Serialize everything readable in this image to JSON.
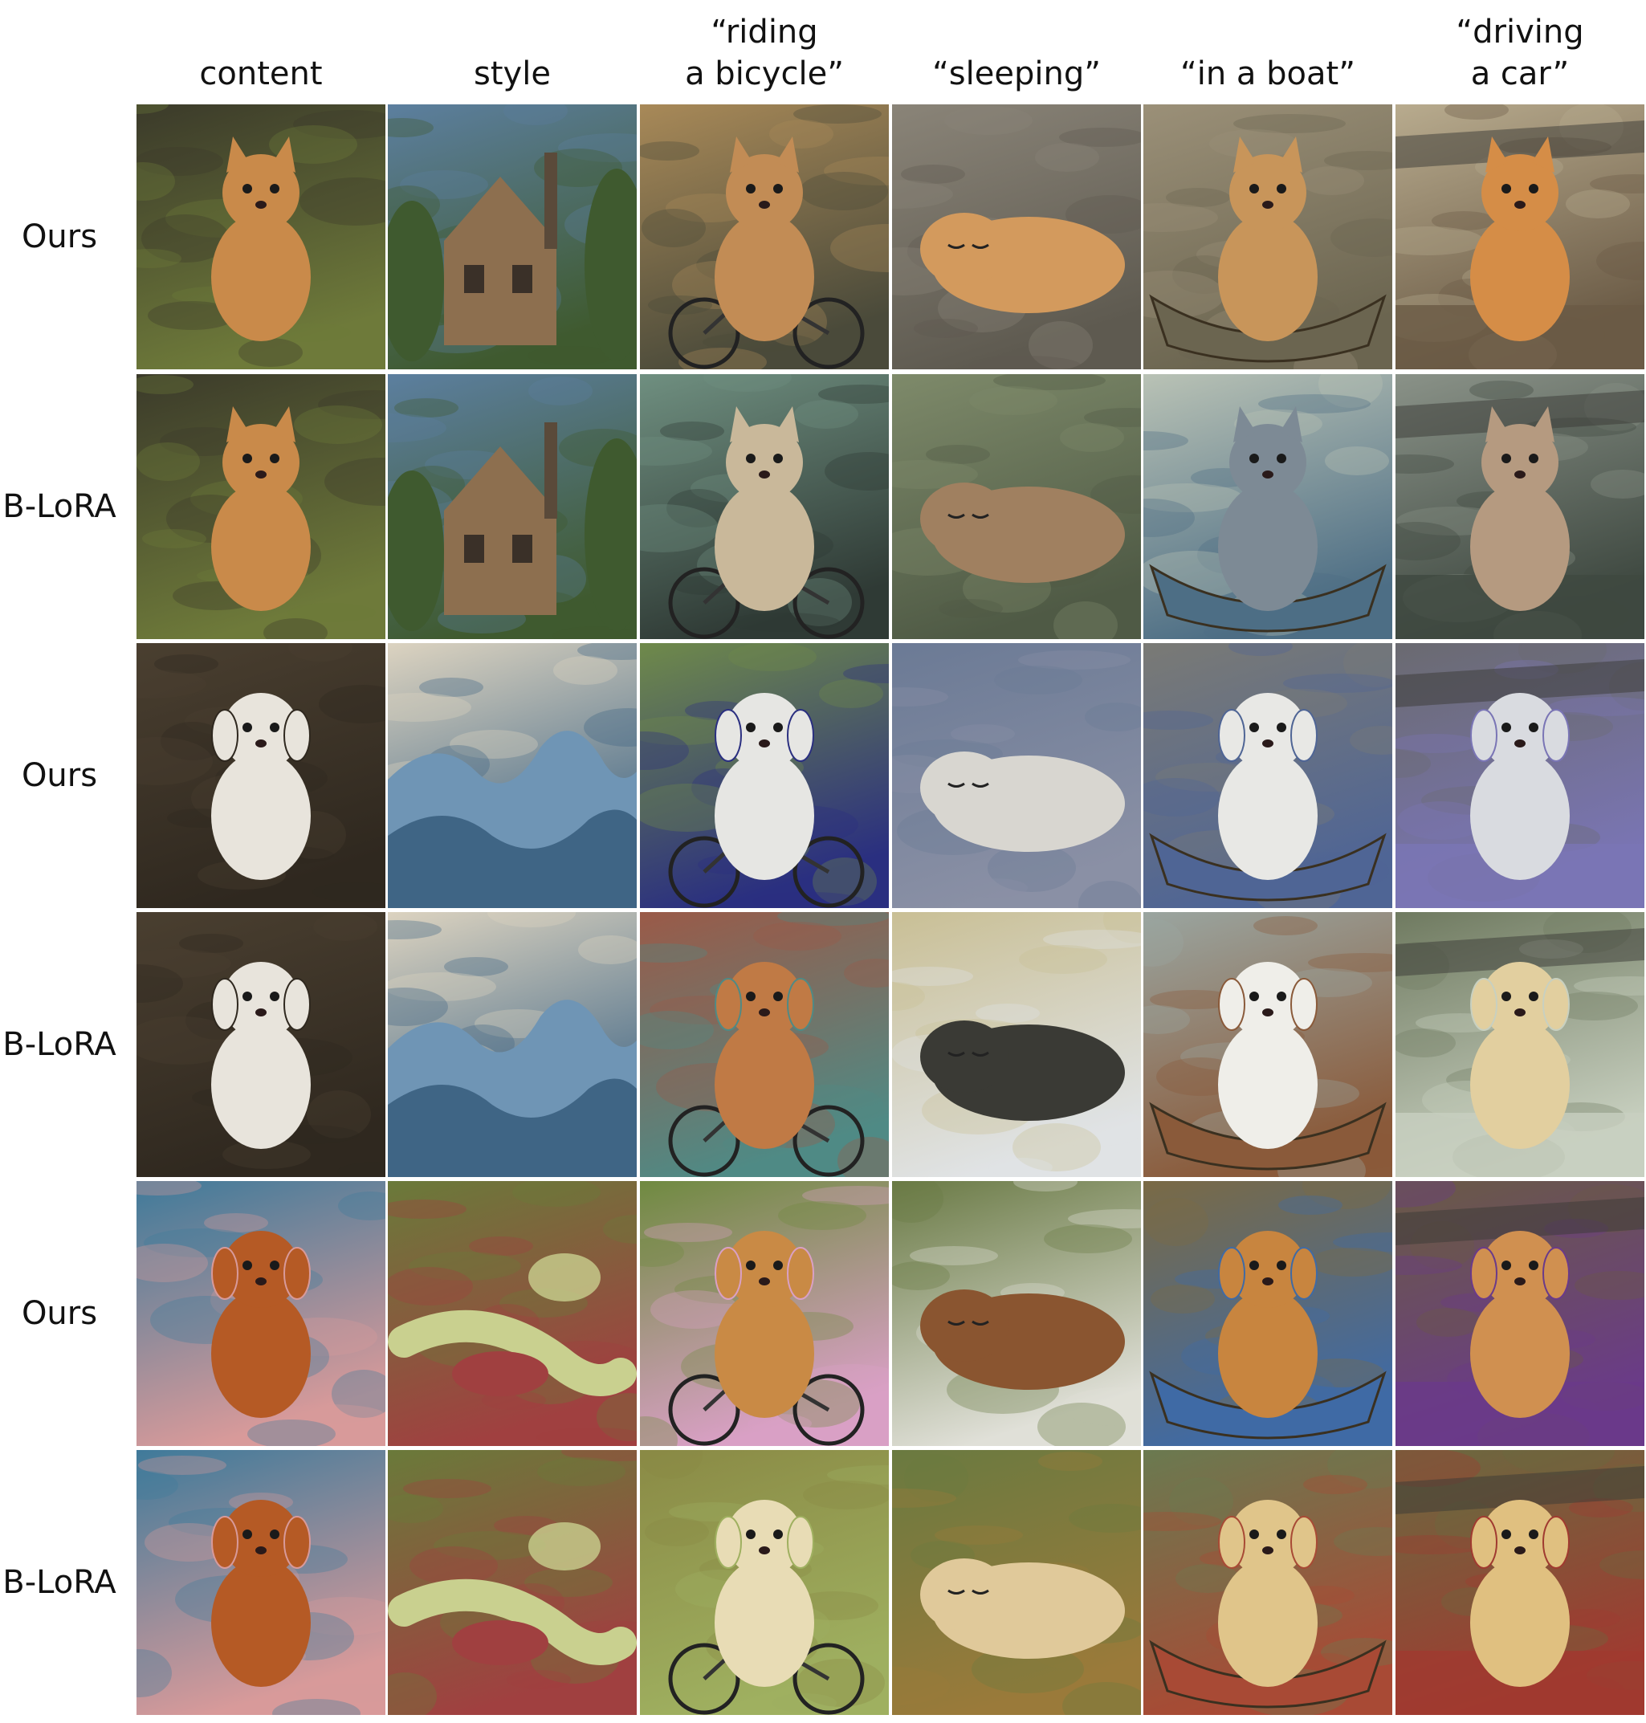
{
  "columns": [
    {
      "key": "content",
      "label": "content"
    },
    {
      "key": "style",
      "label": "style"
    },
    {
      "key": "riding",
      "label": "“riding\na bicycle”"
    },
    {
      "key": "sleeping",
      "label": "“sleeping”"
    },
    {
      "key": "boat",
      "label": "“in a boat”"
    },
    {
      "key": "driving",
      "label": "“driving\na car”"
    }
  ],
  "rows": [
    {
      "method": "Ours",
      "tiles": [
        {
          "subject": "cat",
          "scene": "sitting on grass, photo",
          "bg": "#3b3a2a",
          "fg": "#c98a4a",
          "accent": "#6e7a3a",
          "icon": "cat-photo-icon"
        },
        {
          "subject": "house",
          "scene": "watercolor painting of a gothic house",
          "bg": "#5c7f9f",
          "fg": "#8d6f4f",
          "accent": "#3f5a2f",
          "icon": "watercolor-house-icon"
        },
        {
          "subject": "cat",
          "scene": "cat in jacket riding bicycle",
          "bg": "#a88958",
          "fg": "#c28c55",
          "accent": "#4a4a3a",
          "icon": "cat-bicycle-icon"
        },
        {
          "subject": "cat",
          "scene": "cat sleeping on sheets",
          "bg": "#8a8478",
          "fg": "#d39a5d",
          "accent": "#5e5a50",
          "icon": "cat-sleeping-icon"
        },
        {
          "subject": "cat",
          "scene": "cat sitting in a rowboat",
          "bg": "#9b9078",
          "fg": "#c8955a",
          "accent": "#6b6550",
          "icon": "cat-boat-icon"
        },
        {
          "subject": "cat",
          "scene": "cat at car window",
          "bg": "#b8ab8e",
          "fg": "#d58d47",
          "accent": "#6a5a45",
          "icon": "cat-car-icon"
        }
      ]
    },
    {
      "method": "B-LoRA",
      "tiles": [
        {
          "subject": "cat",
          "scene": "sitting on grass, photo",
          "bg": "#3b3a2a",
          "fg": "#c98a4a",
          "accent": "#6e7a3a",
          "icon": "cat-photo-icon"
        },
        {
          "subject": "house",
          "scene": "watercolor painting of a gothic house",
          "bg": "#5c7f9f",
          "fg": "#8d6f4f",
          "accent": "#3f5a2f",
          "icon": "watercolor-house-icon"
        },
        {
          "subject": "cat",
          "scene": "cat riding bicycle with basket",
          "bg": "#6f8f80",
          "fg": "#c9b89a",
          "accent": "#2f3a35",
          "icon": "cat-bicycle-icon"
        },
        {
          "subject": "cat",
          "scene": "cat sleeping in a landscape",
          "bg": "#7e8a6a",
          "fg": "#a08060",
          "accent": "#4f5a45",
          "icon": "cat-sleeping-icon"
        },
        {
          "subject": "cat",
          "scene": "cat in a blue boat",
          "bg": "#b9c2b5",
          "fg": "#7d8a95",
          "accent": "#4d6e85",
          "icon": "cat-boat-icon"
        },
        {
          "subject": "cat",
          "scene": "cat driving a car",
          "bg": "#8a9288",
          "fg": "#b59a80",
          "accent": "#3e4840",
          "icon": "cat-car-icon"
        }
      ]
    },
    {
      "method": "Ours",
      "tiles": [
        {
          "subject": "dog",
          "scene": "white poodle standing, photo",
          "bg": "#4a3f30",
          "fg": "#e8e4dc",
          "accent": "#2f281f",
          "icon": "dog-photo-icon"
        },
        {
          "subject": "wave",
          "scene": "mosaic wave pattern",
          "bg": "#dcd3c0",
          "fg": "#6f95b5",
          "accent": "#3f6585",
          "icon": "mosaic-wave-icon"
        },
        {
          "subject": "dog",
          "scene": "mosaic dog riding bicycle",
          "bg": "#6f8a4a",
          "fg": "#e6e6e3",
          "accent": "#2a2f80",
          "icon": "dog-bicycle-icon"
        },
        {
          "subject": "dog",
          "scene": "mosaic dog sleeping on blanket",
          "bg": "#6b7a95",
          "fg": "#d8d6d0",
          "accent": "#8a90a5",
          "icon": "dog-sleeping-icon"
        },
        {
          "subject": "dog",
          "scene": "mosaic dog in a boat",
          "bg": "#7a7a75",
          "fg": "#e8e8e5",
          "accent": "#4f6595",
          "icon": "dog-boat-icon"
        },
        {
          "subject": "dog",
          "scene": "mosaic dog in car",
          "bg": "#6a6a70",
          "fg": "#d9dbe0",
          "accent": "#7a75b5",
          "icon": "dog-car-icon"
        }
      ]
    },
    {
      "method": "B-LoRA",
      "tiles": [
        {
          "subject": "dog",
          "scene": "white poodle standing, photo",
          "bg": "#4a3f30",
          "fg": "#e8e4dc",
          "accent": "#2f281f",
          "icon": "dog-photo-icon"
        },
        {
          "subject": "wave",
          "scene": "mosaic wave pattern",
          "bg": "#dcd3c0",
          "fg": "#6f95b5",
          "accent": "#3f6585",
          "icon": "mosaic-wave-icon"
        },
        {
          "subject": "dog",
          "scene": "puppy on bicycle with basket, brick wall",
          "bg": "#9a5a48",
          "fg": "#c07a45",
          "accent": "#4f8a85",
          "icon": "dog-bicycle-icon"
        },
        {
          "subject": "dog",
          "scene": "black mosaic dog sleeping on bed",
          "bg": "#c9bf95",
          "fg": "#3a3a35",
          "accent": "#e0e3e5",
          "icon": "dog-sleeping-icon"
        },
        {
          "subject": "dog",
          "scene": "puppy in wooden boat on lake",
          "bg": "#9aa5a0",
          "fg": "#efeee9",
          "accent": "#8a5a3a",
          "icon": "dog-boat-icon"
        },
        {
          "subject": "dog",
          "scene": "labrador at car window",
          "bg": "#6f7a60",
          "fg": "#e2cf9f",
          "accent": "#c8d0c0",
          "icon": "dog-car-icon"
        }
      ]
    },
    {
      "method": "Ours",
      "tiles": [
        {
          "subject": "dog",
          "scene": "red retriever on beach, photo",
          "bg": "#3f7a9a",
          "fg": "#b55a25",
          "accent": "#d89a9a",
          "icon": "dog-photo-icon"
        },
        {
          "subject": "figures",
          "scene": "impressionist painting of reclining figures",
          "bg": "#6a7a3a",
          "fg": "#c9d08f",
          "accent": "#a04040",
          "icon": "impressionist-painting-icon"
        },
        {
          "subject": "dog",
          "scene": "retriever riding bicycle, blossoms",
          "bg": "#6f8a40",
          "fg": "#c98a45",
          "accent": "#d9a0c5",
          "icon": "dog-bicycle-icon"
        },
        {
          "subject": "dog",
          "scene": "dog sleeping on pillow",
          "bg": "#6a7a45",
          "fg": "#8a5530",
          "accent": "#e0e0d8",
          "icon": "dog-sleeping-icon"
        },
        {
          "subject": "dog",
          "scene": "retriever in white boat",
          "bg": "#7a6a45",
          "fg": "#c8853f",
          "accent": "#3f6aa5",
          "icon": "dog-boat-icon"
        },
        {
          "subject": "dog",
          "scene": "retriever in convertible",
          "bg": "#6a5a45",
          "fg": "#d09050",
          "accent": "#6a3a8a",
          "icon": "dog-car-icon"
        }
      ]
    },
    {
      "method": "B-LoRA",
      "tiles": [
        {
          "subject": "dog",
          "scene": "red retriever on beach, photo",
          "bg": "#3f7a9a",
          "fg": "#b55a25",
          "accent": "#d89a9a",
          "icon": "dog-photo-icon"
        },
        {
          "subject": "figures",
          "scene": "impressionist painting of reclining figures",
          "bg": "#6a7a3a",
          "fg": "#c9d08f",
          "accent": "#a04040",
          "icon": "impressionist-painting-icon"
        },
        {
          "subject": "dog",
          "scene": "dog lying on green bicycle",
          "bg": "#8a8a45",
          "fg": "#e8dcb5",
          "accent": "#9fb060",
          "icon": "dog-bicycle-icon"
        },
        {
          "subject": "dog",
          "scene": "dog sleeping in grass",
          "bg": "#6a7a40",
          "fg": "#e0c99a",
          "accent": "#9a7a3a",
          "icon": "dog-sleeping-icon"
        },
        {
          "subject": "dog",
          "scene": "dogs in red boat on river",
          "bg": "#6a7a50",
          "fg": "#e0c58a",
          "accent": "#a84a35",
          "icon": "dog-boat-icon"
        },
        {
          "subject": "dog",
          "scene": "dog in wrecked car",
          "bg": "#6a6a40",
          "fg": "#e0c080",
          "accent": "#a03a30",
          "icon": "dog-car-icon"
        }
      ]
    }
  ]
}
